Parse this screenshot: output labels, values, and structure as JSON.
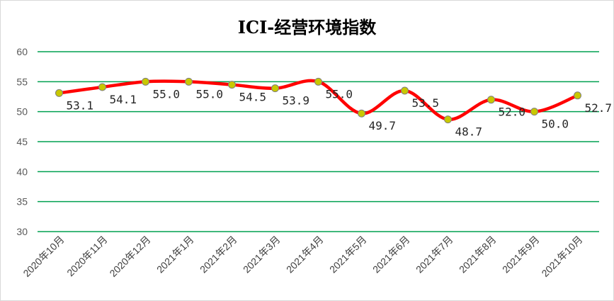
{
  "chart_data": {
    "type": "line",
    "title": "ICI-经营环境指数",
    "categories": [
      "2020年10月",
      "2020年11月",
      "2020年12月",
      "2021年1月",
      "2021年2月",
      "2021年3月",
      "2021年4月",
      "2021年5月",
      "2021年6月",
      "2021年7月",
      "2021年8月",
      "2021年9月",
      "2021年10月"
    ],
    "values": [
      53.1,
      54.1,
      55.0,
      55.0,
      54.5,
      53.9,
      55.0,
      49.7,
      53.5,
      48.7,
      52.0,
      50.0,
      52.7
    ],
    "data_labels": [
      "53.1",
      "54.1",
      "55.0",
      "55.0",
      "54.5",
      "53.9",
      "55.0",
      "49.7",
      "53.5",
      "48.7",
      "52.0",
      "50.0",
      "52.7"
    ],
    "ylim": [
      30,
      60
    ],
    "yticks": [
      "30",
      "35",
      "40",
      "45",
      "50",
      "55",
      "60"
    ],
    "grid": true,
    "line_color": "#ff0000",
    "marker_color": "#c8c800",
    "grid_color": "#00a050",
    "smooth": true
  }
}
